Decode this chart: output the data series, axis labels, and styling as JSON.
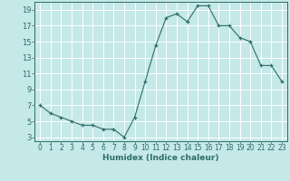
{
  "x": [
    0,
    1,
    2,
    3,
    4,
    5,
    6,
    7,
    8,
    9,
    10,
    11,
    12,
    13,
    14,
    15,
    16,
    17,
    18,
    19,
    20,
    21,
    22,
    23
  ],
  "y": [
    7.0,
    6.0,
    5.5,
    5.0,
    4.5,
    4.5,
    4.0,
    4.0,
    3.0,
    5.5,
    10.0,
    14.5,
    18.0,
    18.5,
    17.5,
    19.5,
    19.5,
    17.0,
    17.0,
    15.5,
    15.0,
    12.0,
    12.0,
    10.0
  ],
  "xlabel": "Humidex (Indice chaleur)",
  "ylabel": "",
  "title": "",
  "bg_color": "#c5e8e8",
  "grid_color": "#ffffff",
  "line_color": "#2d6e68",
  "marker_color": "#2d6e68",
  "xmin": -0.5,
  "xmax": 23.5,
  "ymin": 2.5,
  "ymax": 20.0,
  "yticks": [
    3,
    5,
    7,
    9,
    11,
    13,
    15,
    17,
    19
  ],
  "xticks": [
    0,
    1,
    2,
    3,
    4,
    5,
    6,
    7,
    8,
    9,
    10,
    11,
    12,
    13,
    14,
    15,
    16,
    17,
    18,
    19,
    20,
    21,
    22,
    23
  ],
  "tick_fontsize": 5.5,
  "xlabel_fontsize": 6.5,
  "ytick_fontsize": 6.0
}
